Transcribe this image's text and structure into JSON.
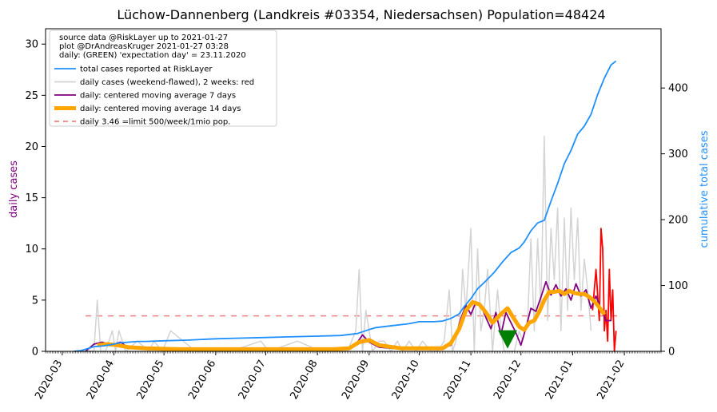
{
  "chart_data": {
    "type": "line",
    "title": "Lüchow-Dannenberg (Landkreis #03354, Niedersachsen) Population=48424",
    "ylabel_left": "daily cases",
    "ylabel_right": "cumulative total cases",
    "ylim_left": [
      0,
      31.5
    ],
    "ylim_right": [
      0,
      490
    ],
    "xlim": [
      "2020-02-20",
      "2021-02-23"
    ],
    "yticks_left": [
      "0",
      "5",
      "10",
      "15",
      "20",
      "25",
      "30"
    ],
    "yticks_right": [
      "0",
      "100",
      "200",
      "300",
      "400"
    ],
    "xticks": [
      "2020-03",
      "2020-04",
      "2020-05",
      "2020-06",
      "2020-07",
      "2020-08",
      "2020-09",
      "2020-10",
      "2020-11",
      "2020-12",
      "2021-01",
      "2021-02"
    ],
    "xtick_dates": [
      "2020-03-01",
      "2020-04-01",
      "2020-05-01",
      "2020-06-01",
      "2020-07-01",
      "2020-08-01",
      "2020-09-01",
      "2020-10-01",
      "2020-11-01",
      "2020-12-01",
      "2021-01-01",
      "2021-02-01"
    ],
    "grid": false,
    "legend_placement": "top-left",
    "info_lines": [
      "source data @RiskLayer up to 2021-01-27",
      "plot @DrAndreasKruger 2021-01-27 03:28",
      "daily: (GREEN) 'expectation day' = 23.11.2020"
    ],
    "legend": [
      {
        "label": "total cases reported at RiskLayer",
        "color": "#1e90ff",
        "style": "solid",
        "axis": "right"
      },
      {
        "label": "daily cases (weekend-flawed), 2 weeks: red",
        "color": "#d3d3d3",
        "style": "solid",
        "axis": "left"
      },
      {
        "label": "daily: centered moving average 7 days",
        "color": "#800080",
        "style": "solid",
        "axis": "left"
      },
      {
        "label": "daily: centered moving average 14 days",
        "color": "#ffa500",
        "style": "thick",
        "axis": "left"
      },
      {
        "label": "daily 3.46 =limit 500/week/1mio pop.",
        "color": "#f08080",
        "style": "dashed",
        "axis": "left"
      }
    ],
    "limit_line": {
      "y": 3.46,
      "x_start": "2020-03-15",
      "x_end": "2021-01-31"
    },
    "expectation_day": {
      "date": "2020-11-23",
      "y": 1.2,
      "color": "#008000"
    },
    "series": [
      {
        "name": "total cases reported at RiskLayer",
        "axis": "right",
        "color": "#1e90ff",
        "x": [
          "2020-03-08",
          "2020-03-12",
          "2020-03-16",
          "2020-03-20",
          "2020-03-25",
          "2020-03-30",
          "2020-04-05",
          "2020-04-10",
          "2020-04-15",
          "2020-04-20",
          "2020-05-01",
          "2020-05-15",
          "2020-06-01",
          "2020-06-15",
          "2020-07-01",
          "2020-07-15",
          "2020-08-01",
          "2020-08-15",
          "2020-08-25",
          "2020-09-01",
          "2020-09-05",
          "2020-09-15",
          "2020-09-25",
          "2020-10-01",
          "2020-10-10",
          "2020-10-15",
          "2020-10-20",
          "2020-10-25",
          "2020-10-28",
          "2020-11-01",
          "2020-11-05",
          "2020-11-10",
          "2020-11-15",
          "2020-11-20",
          "2020-11-25",
          "2020-11-30",
          "2020-12-03",
          "2020-12-07",
          "2020-12-11",
          "2020-12-15",
          "2020-12-19",
          "2020-12-23",
          "2020-12-27",
          "2020-12-31",
          "2021-01-04",
          "2021-01-08",
          "2021-01-12",
          "2021-01-16",
          "2021-01-20",
          "2021-01-24",
          "2021-01-27"
        ],
        "values": [
          0,
          1,
          4,
          7,
          8,
          10,
          13,
          14,
          15,
          15,
          16,
          17,
          19,
          20,
          21,
          22,
          23,
          24,
          27,
          33,
          36,
          39,
          42,
          45,
          45,
          46,
          50,
          57,
          68,
          80,
          95,
          107,
          120,
          136,
          150,
          157,
          166,
          183,
          195,
          199,
          228,
          255,
          285,
          305,
          330,
          342,
          360,
          390,
          415,
          435,
          441
        ]
      },
      {
        "name": "daily cases (weekend-flawed), 2 weeks: red",
        "axis": "left",
        "color": "#d3d3d3",
        "x": [
          "2020-03-10",
          "2020-03-16",
          "2020-03-20",
          "2020-03-22",
          "2020-03-24",
          "2020-03-27",
          "2020-03-31",
          "2020-04-02",
          "2020-04-04",
          "2020-04-08",
          "2020-04-15",
          "2020-04-22",
          "2020-04-25",
          "2020-04-30",
          "2020-05-05",
          "2020-05-20",
          "2020-06-10",
          "2020-06-28",
          "2020-07-03",
          "2020-07-20",
          "2020-08-03",
          "2020-08-19",
          "2020-08-24",
          "2020-08-26",
          "2020-08-28",
          "2020-08-30",
          "2020-09-03",
          "2020-09-07",
          "2020-09-10",
          "2020-09-14",
          "2020-09-18",
          "2020-09-21",
          "2020-09-25",
          "2020-09-29",
          "2020-10-03",
          "2020-10-08",
          "2020-10-12",
          "2020-10-16",
          "2020-10-19",
          "2020-10-21",
          "2020-10-23",
          "2020-10-26",
          "2020-10-27",
          "2020-10-29",
          "2020-11-01",
          "2020-11-03",
          "2020-11-05",
          "2020-11-07",
          "2020-11-09",
          "2020-11-11",
          "2020-11-14",
          "2020-11-17",
          "2020-11-19",
          "2020-11-21",
          "2020-11-24",
          "2020-11-27",
          "2020-11-30",
          "2020-12-02",
          "2020-12-05",
          "2020-12-07",
          "2020-12-09",
          "2020-12-11",
          "2020-12-13",
          "2020-12-15",
          "2020-12-17",
          "2020-12-19",
          "2020-12-21",
          "2020-12-23",
          "2020-12-25",
          "2020-12-27",
          "2020-12-29",
          "2020-12-31",
          "2021-01-02",
          "2021-01-04",
          "2021-01-06",
          "2021-01-08",
          "2021-01-10",
          "2021-01-12"
        ],
        "values": [
          0,
          0,
          0,
          5,
          0,
          0,
          2,
          0,
          2,
          0,
          1,
          0,
          1,
          0,
          2,
          0,
          0,
          1,
          0,
          1,
          0,
          0,
          2,
          8,
          0,
          4,
          0,
          1,
          1,
          0,
          1,
          0,
          1,
          0,
          1,
          0,
          0,
          1,
          6,
          0,
          1,
          4,
          8,
          4,
          12,
          0,
          10,
          2,
          4,
          8,
          0,
          6,
          2,
          0,
          0,
          0,
          2,
          1,
          3,
          11,
          2,
          11,
          4,
          21,
          3,
          12,
          7,
          14,
          2,
          13,
          4,
          14,
          7,
          13,
          4,
          9,
          6,
          2
        ]
      },
      {
        "name": "daily cases, last 2 weeks",
        "axis": "left",
        "color": "#ff0000",
        "x": [
          "2021-01-13",
          "2021-01-15",
          "2021-01-17",
          "2021-01-18",
          "2021-01-19",
          "2021-01-20",
          "2021-01-21",
          "2021-01-22",
          "2021-01-23",
          "2021-01-24",
          "2021-01-25",
          "2021-01-26",
          "2021-01-27"
        ],
        "values": [
          4,
          8,
          3,
          12,
          10,
          2,
          4,
          1,
          8,
          3,
          6,
          0,
          2
        ]
      },
      {
        "name": "daily: centered moving average 7 days",
        "axis": "left",
        "color": "#800080",
        "x": [
          "2020-03-15",
          "2020-03-20",
          "2020-03-25",
          "2020-03-30",
          "2020-04-05",
          "2020-04-10",
          "2020-04-20",
          "2020-05-10",
          "2020-06-10",
          "2020-07-10",
          "2020-08-10",
          "2020-08-20",
          "2020-08-25",
          "2020-08-28",
          "2020-09-01",
          "2020-09-07",
          "2020-09-15",
          "2020-10-01",
          "2020-10-15",
          "2020-10-20",
          "2020-10-23",
          "2020-10-26",
          "2020-10-29",
          "2020-11-01",
          "2020-11-04",
          "2020-11-07",
          "2020-11-10",
          "2020-11-13",
          "2020-11-16",
          "2020-11-19",
          "2020-11-22",
          "2020-11-25",
          "2020-11-28",
          "2020-12-01",
          "2020-12-04",
          "2020-12-07",
          "2020-12-10",
          "2020-12-13",
          "2020-12-16",
          "2020-12-19",
          "2020-12-22",
          "2020-12-25",
          "2020-12-28",
          "2020-12-31",
          "2021-01-03",
          "2021-01-06",
          "2021-01-09",
          "2021-01-12",
          "2021-01-15",
          "2021-01-18",
          "2021-01-21",
          "2021-01-24"
        ],
        "values": [
          0,
          0.7,
          0.9,
          0.6,
          0.9,
          0.3,
          0.3,
          0.2,
          0.2,
          0.2,
          0.2,
          0.2,
          0.9,
          1.6,
          0.9,
          0.4,
          0.3,
          0.2,
          0.3,
          0.6,
          1.5,
          3.2,
          4.5,
          3.6,
          4.8,
          4.5,
          3.3,
          2.2,
          3.8,
          1.6,
          3.8,
          2.8,
          1.8,
          0.6,
          2.3,
          4.2,
          3.9,
          5.3,
          6.8,
          5.5,
          6.5,
          5.4,
          6.1,
          5.0,
          6.6,
          5.4,
          6.0,
          4.2,
          5.4,
          4.1,
          3.0,
          3.0
        ]
      },
      {
        "name": "daily: centered moving average 14 days",
        "axis": "left",
        "color": "#ffa500",
        "x": [
          "2020-03-22",
          "2020-03-28",
          "2020-04-03",
          "2020-04-10",
          "2020-04-20",
          "2020-05-10",
          "2020-06-10",
          "2020-07-10",
          "2020-08-10",
          "2020-08-20",
          "2020-08-26",
          "2020-09-01",
          "2020-09-07",
          "2020-09-20",
          "2020-10-05",
          "2020-10-15",
          "2020-10-20",
          "2020-10-25",
          "2020-10-29",
          "2020-11-02",
          "2020-11-06",
          "2020-11-10",
          "2020-11-14",
          "2020-11-17",
          "2020-11-20",
          "2020-11-23",
          "2020-11-26",
          "2020-11-30",
          "2020-12-03",
          "2020-12-06",
          "2020-12-09",
          "2020-12-12",
          "2020-12-15",
          "2020-12-18",
          "2020-12-21",
          "2020-12-24",
          "2020-12-27",
          "2020-12-30",
          "2021-01-02",
          "2021-01-05",
          "2021-01-08",
          "2021-01-11",
          "2021-01-14",
          "2021-01-17",
          "2021-01-20"
        ],
        "values": [
          0.6,
          0.7,
          0.6,
          0.4,
          0.3,
          0.2,
          0.2,
          0.2,
          0.2,
          0.3,
          0.9,
          1.1,
          0.6,
          0.3,
          0.3,
          0.3,
          0.8,
          2.2,
          4.0,
          4.8,
          4.6,
          3.8,
          2.8,
          3.3,
          3.8,
          4.2,
          3.4,
          2.4,
          2.1,
          2.8,
          3.0,
          3.9,
          5.0,
          5.8,
          5.8,
          5.9,
          5.6,
          5.9,
          5.7,
          5.6,
          5.6,
          5.3,
          4.9,
          4.3,
          3.6
        ]
      }
    ]
  }
}
